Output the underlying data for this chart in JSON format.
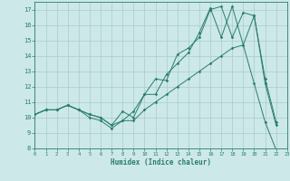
{
  "background_color": "#cce8e8",
  "grid_color": "#aacccc",
  "line_color": "#2a7d6f",
  "line1": {
    "x": [
      0,
      1,
      2,
      3,
      4,
      5,
      6,
      7,
      8,
      9,
      10,
      11,
      12,
      13,
      14,
      15,
      16,
      17,
      18,
      19,
      20,
      21,
      22
    ],
    "y": [
      10.2,
      10.5,
      10.5,
      10.8,
      10.5,
      10.2,
      10.0,
      9.5,
      9.8,
      10.4,
      11.5,
      12.5,
      12.4,
      14.1,
      14.5,
      15.2,
      17.0,
      17.2,
      15.2,
      16.8,
      16.6,
      12.2,
      9.5
    ]
  },
  "line2": {
    "x": [
      0,
      1,
      2,
      3,
      4,
      5,
      6,
      7,
      8,
      9,
      10,
      11,
      12,
      13,
      14,
      15,
      16,
      17,
      18,
      19,
      20,
      21,
      22
    ],
    "y": [
      10.2,
      10.5,
      10.5,
      10.8,
      10.5,
      10.2,
      10.0,
      9.5,
      10.4,
      10.0,
      11.5,
      11.5,
      12.8,
      13.5,
      14.2,
      15.5,
      17.1,
      15.2,
      17.2,
      14.7,
      16.6,
      12.5,
      9.7
    ]
  },
  "line3": {
    "x": [
      0,
      1,
      2,
      3,
      4,
      5,
      6,
      7,
      8,
      9,
      10,
      11,
      12,
      13,
      14,
      15,
      16,
      17,
      18,
      19,
      20,
      21,
      22,
      23
    ],
    "y": [
      10.2,
      10.5,
      10.5,
      10.8,
      10.5,
      10.0,
      9.8,
      9.3,
      9.8,
      9.8,
      10.5,
      11.0,
      11.5,
      12.0,
      12.5,
      13.0,
      13.5,
      14.0,
      14.5,
      14.7,
      12.2,
      9.7,
      7.9,
      null
    ]
  },
  "xlim": [
    0,
    23
  ],
  "ylim": [
    8,
    17.5
  ],
  "yticks": [
    8,
    9,
    10,
    11,
    12,
    13,
    14,
    15,
    16,
    17
  ],
  "xticks": [
    0,
    1,
    2,
    3,
    4,
    5,
    6,
    7,
    8,
    9,
    10,
    11,
    12,
    13,
    14,
    15,
    16,
    17,
    18,
    19,
    20,
    21,
    22,
    23
  ],
  "xlabel": "Humidex (Indice chaleur)"
}
